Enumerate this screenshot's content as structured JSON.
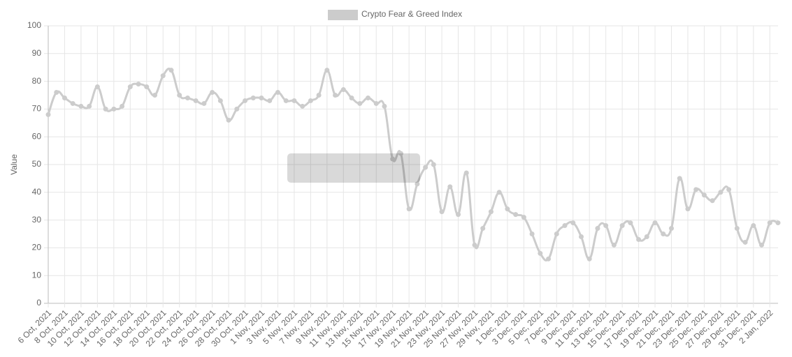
{
  "chart_data": {
    "type": "line",
    "series": [
      {
        "name": "Crypto Fear & Greed Index",
        "color": "#cccccc",
        "values": [
          68,
          76,
          74,
          72,
          71,
          71,
          78,
          70,
          70,
          71,
          78,
          79,
          78,
          75,
          82,
          84,
          75,
          74,
          73,
          72,
          76,
          73,
          66,
          70,
          73,
          74,
          74,
          73,
          76,
          73,
          73,
          71,
          73,
          75,
          84,
          75,
          77,
          74,
          72,
          74,
          72,
          71,
          52,
          54,
          34,
          43,
          49,
          50,
          33,
          42,
          32,
          47,
          21,
          27,
          33,
          40,
          34,
          32,
          31,
          25,
          18,
          16,
          25,
          28,
          29,
          24,
          16,
          27,
          28,
          21,
          28,
          29,
          23,
          24,
          29,
          25,
          27,
          45,
          34,
          41,
          39,
          37,
          40,
          41,
          27,
          22,
          28,
          21,
          29,
          29
        ]
      }
    ],
    "categories": [
      "6 Oct, 2021",
      null,
      "8 Oct, 2021",
      null,
      "10 Oct, 2021",
      null,
      "12 Oct, 2021",
      null,
      "14 Oct, 2021",
      null,
      "16 Oct, 2021",
      null,
      "18 Oct, 2021",
      null,
      "20 Oct, 2021",
      null,
      "22 Oct, 2021",
      null,
      "24 Oct, 2021",
      null,
      "26 Oct, 2021",
      null,
      "28 Oct, 2021",
      null,
      "30 Oct, 2021",
      null,
      "1 Nov, 2021",
      null,
      "3 Nov, 2021",
      null,
      "5 Nov, 2021",
      null,
      "7 Nov, 2021",
      null,
      "9 Nov, 2021",
      null,
      "11 Nov, 2021",
      null,
      "13 Nov, 2021",
      null,
      "15 Nov, 2021",
      null,
      "17 Nov, 2021",
      null,
      "19 Nov, 2021",
      null,
      "21 Nov, 2021",
      null,
      "23 Nov, 2021",
      null,
      "25 Nov, 2021",
      null,
      "27 Nov, 2021",
      null,
      "29 Nov, 2021",
      null,
      "1 Dec, 2021",
      null,
      "3 Dec, 2021",
      null,
      "5 Dec, 2021",
      null,
      "7 Dec, 2021",
      null,
      "9 Dec, 2021",
      null,
      "11 Dec, 2021",
      null,
      "13 Dec, 2021",
      null,
      "15 Dec, 2021",
      null,
      "17 Dec, 2021",
      null,
      "19 Dec, 2021",
      null,
      "21 Dec, 2021",
      null,
      "23 Dec, 2021",
      null,
      "25 Dec, 2021",
      null,
      "27 Dec, 2021",
      null,
      "29 Dec, 2021",
      null,
      "31 Dec, 2021",
      null,
      "2 Jan, 2022",
      null
    ],
    "y_label": "Value",
    "ylim": [
      0,
      100
    ],
    "yticks": [
      0,
      10,
      20,
      30,
      40,
      50,
      60,
      70,
      80,
      90,
      100
    ],
    "grid": true,
    "legend": "top"
  }
}
